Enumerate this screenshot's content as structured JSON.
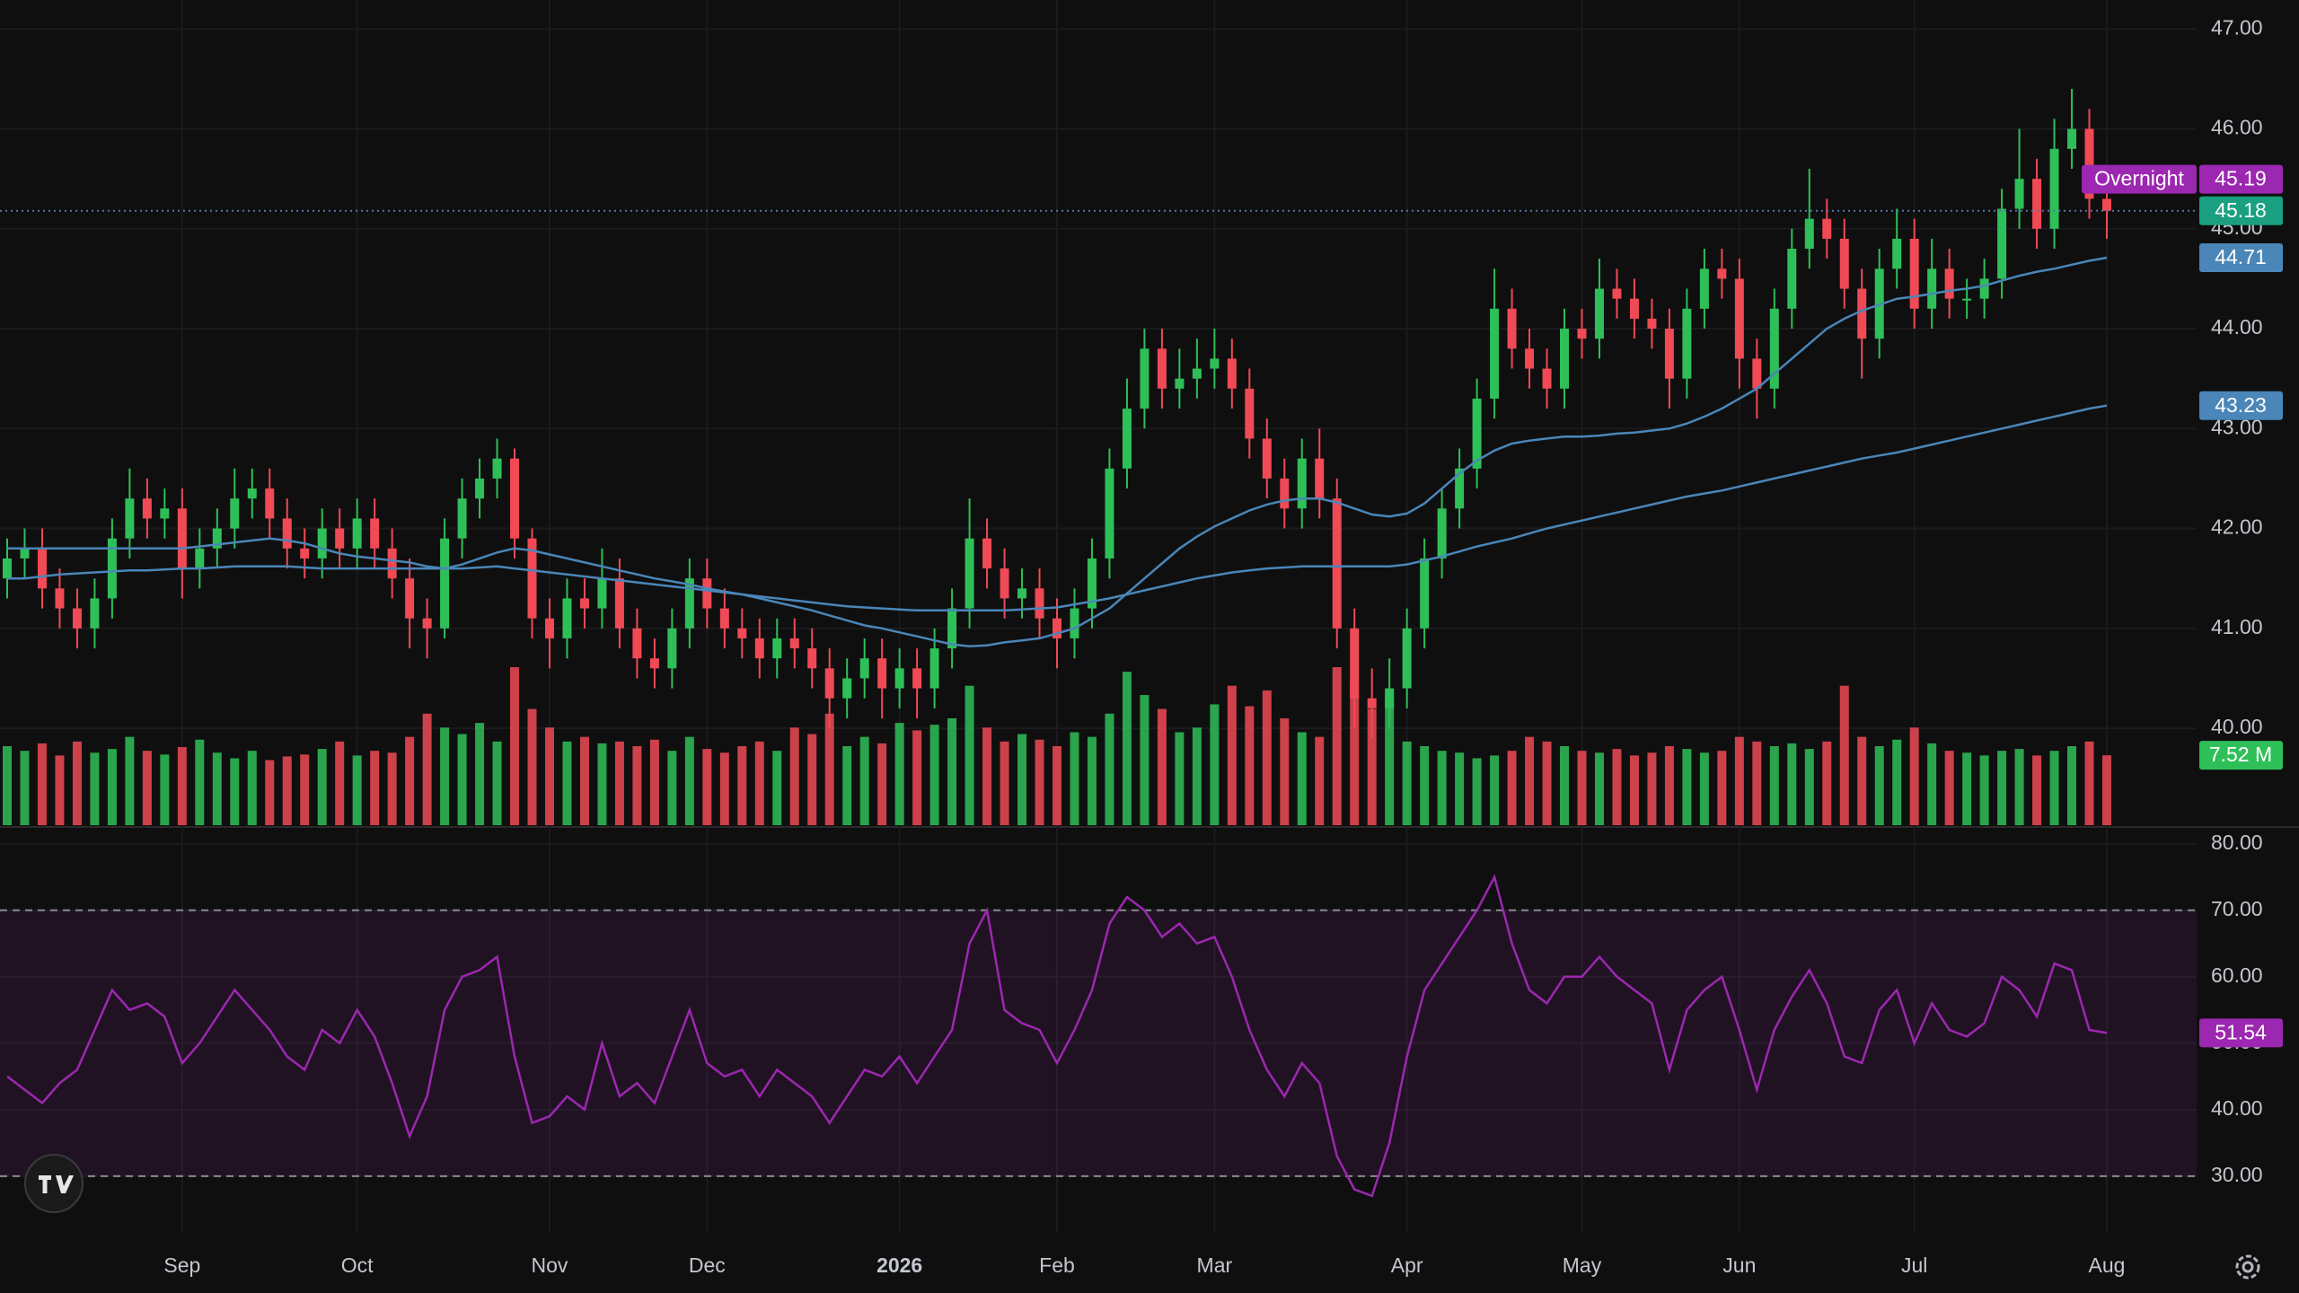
{
  "chart_data": {
    "type": "candlestick",
    "categories": [
      null,
      null,
      null,
      null,
      null,
      null,
      null,
      null,
      null,
      null,
      "Sep",
      null,
      null,
      null,
      null,
      null,
      null,
      null,
      null,
      null,
      "Oct",
      null,
      null,
      null,
      null,
      null,
      null,
      null,
      null,
      null,
      null,
      "Nov",
      null,
      null,
      null,
      null,
      null,
      null,
      null,
      null,
      "Dec",
      null,
      null,
      null,
      null,
      null,
      null,
      null,
      null,
      null,
      null,
      "2026",
      null,
      null,
      null,
      null,
      null,
      null,
      null,
      null,
      "Feb",
      null,
      null,
      null,
      null,
      null,
      null,
      null,
      null,
      "Mar",
      null,
      null,
      null,
      null,
      null,
      null,
      null,
      null,
      null,
      null,
      "Apr",
      null,
      null,
      null,
      null,
      null,
      null,
      null,
      null,
      null,
      "May",
      null,
      null,
      null,
      null,
      null,
      null,
      null,
      null,
      "Jun",
      null,
      null,
      null,
      null,
      null,
      null,
      null,
      null,
      null,
      "Jul",
      null,
      null,
      null,
      null,
      null,
      null,
      null,
      null,
      null,
      null,
      "Aug"
    ],
    "ylim": [
      39.03,
      47.29
    ],
    "yticks": [
      {
        "value": 40,
        "label": "40.00"
      },
      {
        "value": 41,
        "label": "41.00"
      },
      {
        "value": 42,
        "label": "42.00"
      },
      {
        "value": 43,
        "label": "43.00"
      },
      {
        "value": 44,
        "label": "44.00"
      },
      {
        "value": 45,
        "label": "45.00"
      },
      {
        "value": 46,
        "label": "46.00"
      },
      {
        "value": 47,
        "label": "47.00"
      }
    ],
    "grid": true,
    "up_color": "#2fbf58",
    "down_color": "#ef4a55",
    "candles": {
      "open": [
        41.5,
        41.7,
        41.8,
        41.4,
        41.2,
        41.0,
        41.3,
        41.9,
        42.3,
        42.1,
        42.2,
        41.6,
        41.8,
        42.0,
        42.3,
        42.4,
        42.1,
        41.8,
        41.7,
        42.0,
        41.8,
        42.1,
        41.8,
        41.5,
        41.1,
        41.0,
        41.9,
        42.3,
        42.5,
        42.7,
        41.9,
        41.1,
        40.9,
        41.3,
        41.2,
        41.5,
        41.0,
        40.7,
        40.6,
        41.0,
        41.5,
        41.2,
        41.0,
        40.9,
        40.7,
        40.9,
        40.8,
        40.6,
        40.3,
        40.5,
        40.7,
        40.4,
        40.6,
        40.4,
        40.8,
        41.2,
        41.9,
        41.6,
        41.3,
        41.4,
        41.1,
        40.9,
        41.2,
        41.7,
        42.6,
        43.2,
        43.8,
        43.4,
        43.5,
        43.6,
        43.7,
        43.4,
        42.9,
        42.5,
        42.2,
        42.7,
        42.3,
        41.0,
        40.3,
        40.2,
        40.4,
        41.0,
        41.7,
        42.2,
        42.6,
        43.3,
        44.2,
        43.8,
        43.6,
        43.4,
        44.0,
        43.9,
        44.4,
        44.3,
        44.1,
        44.0,
        43.5,
        44.2,
        44.6,
        44.5,
        43.7,
        43.4,
        44.2,
        44.8,
        45.1,
        44.9,
        44.4,
        43.9,
        44.6,
        44.9,
        44.2,
        44.6,
        44.3,
        44.3,
        44.5,
        45.2,
        45.5,
        45.0,
        45.8,
        46.0,
        45.3
      ],
      "high": [
        41.9,
        42.0,
        42.0,
        41.6,
        41.4,
        41.5,
        42.1,
        42.6,
        42.5,
        42.4,
        42.4,
        42.0,
        42.2,
        42.6,
        42.6,
        42.6,
        42.3,
        42.0,
        42.2,
        42.2,
        42.3,
        42.3,
        42.0,
        41.7,
        41.3,
        42.1,
        42.5,
        42.7,
        42.9,
        42.8,
        42.0,
        41.3,
        41.5,
        41.5,
        41.8,
        41.7,
        41.2,
        40.9,
        41.2,
        41.7,
        41.7,
        41.4,
        41.2,
        41.1,
        41.1,
        41.1,
        41.0,
        40.8,
        40.7,
        40.9,
        40.9,
        40.8,
        40.8,
        41.0,
        41.4,
        42.3,
        42.1,
        41.8,
        41.6,
        41.6,
        41.3,
        41.4,
        41.9,
        42.8,
        43.5,
        44.0,
        44.0,
        43.8,
        43.9,
        44.0,
        43.9,
        43.6,
        43.1,
        42.7,
        42.9,
        43.0,
        42.5,
        41.2,
        40.6,
        40.7,
        41.2,
        41.9,
        42.4,
        42.8,
        43.5,
        44.6,
        44.4,
        44.0,
        43.8,
        44.2,
        44.2,
        44.7,
        44.6,
        44.5,
        44.3,
        44.2,
        44.4,
        44.8,
        44.8,
        44.7,
        43.9,
        44.4,
        45.0,
        45.6,
        45.3,
        45.1,
        44.6,
        44.8,
        45.2,
        45.1,
        44.9,
        44.8,
        44.5,
        44.7,
        45.4,
        46.0,
        45.7,
        46.1,
        46.4,
        46.2,
        45.5
      ],
      "low": [
        41.3,
        41.5,
        41.2,
        41.0,
        40.8,
        40.8,
        41.1,
        41.7,
        41.9,
        41.9,
        41.3,
        41.4,
        41.6,
        41.8,
        42.1,
        41.9,
        41.6,
        41.5,
        41.5,
        41.6,
        41.6,
        41.6,
        41.3,
        40.8,
        40.7,
        40.9,
        41.7,
        42.1,
        42.3,
        41.7,
        40.9,
        40.6,
        40.7,
        41.0,
        41.0,
        40.8,
        40.5,
        40.4,
        40.4,
        40.8,
        41.0,
        40.8,
        40.7,
        40.5,
        40.5,
        40.6,
        40.4,
        40.0,
        40.1,
        40.3,
        40.1,
        40.2,
        40.1,
        40.2,
        40.6,
        41.0,
        41.4,
        41.1,
        41.1,
        40.9,
        40.6,
        40.7,
        41.0,
        41.5,
        42.4,
        43.0,
        43.2,
        43.2,
        43.3,
        43.4,
        43.2,
        42.7,
        42.3,
        42.0,
        42.0,
        42.1,
        40.8,
        40.0,
        39.9,
        40.0,
        40.2,
        40.8,
        41.5,
        42.0,
        42.4,
        43.1,
        43.6,
        43.4,
        43.2,
        43.2,
        43.7,
        43.7,
        44.1,
        43.9,
        43.8,
        43.2,
        43.3,
        44.0,
        44.3,
        43.4,
        43.1,
        43.2,
        44.0,
        44.6,
        44.7,
        44.2,
        43.5,
        43.7,
        44.4,
        44.0,
        44.0,
        44.1,
        44.1,
        44.1,
        44.3,
        45.0,
        44.8,
        44.8,
        45.6,
        45.1,
        44.9
      ],
      "close": [
        41.7,
        41.8,
        41.4,
        41.2,
        41.0,
        41.3,
        41.9,
        42.3,
        42.1,
        42.2,
        41.6,
        41.8,
        42.0,
        42.3,
        42.4,
        42.1,
        41.8,
        41.7,
        42.0,
        41.8,
        42.1,
        41.8,
        41.5,
        41.1,
        41.0,
        41.9,
        42.3,
        42.5,
        42.7,
        41.9,
        41.1,
        40.9,
        41.3,
        41.2,
        41.5,
        41.0,
        40.7,
        40.6,
        41.0,
        41.5,
        41.2,
        41.0,
        40.9,
        40.7,
        40.9,
        40.8,
        40.6,
        40.3,
        40.5,
        40.7,
        40.4,
        40.6,
        40.4,
        40.8,
        41.2,
        41.9,
        41.6,
        41.3,
        41.4,
        41.1,
        40.9,
        41.2,
        41.7,
        42.6,
        43.2,
        43.8,
        43.4,
        43.5,
        43.6,
        43.7,
        43.4,
        42.9,
        42.5,
        42.2,
        42.7,
        42.3,
        41.0,
        40.3,
        40.2,
        40.4,
        41.0,
        41.7,
        42.2,
        42.6,
        43.3,
        44.2,
        43.8,
        43.6,
        43.4,
        44.0,
        43.9,
        44.4,
        44.3,
        44.1,
        44.0,
        43.5,
        44.2,
        44.6,
        44.5,
        43.7,
        43.4,
        44.2,
        44.8,
        45.1,
        44.9,
        44.4,
        43.9,
        44.6,
        44.9,
        44.2,
        44.6,
        44.3,
        44.3,
        44.5,
        45.2,
        45.5,
        45.0,
        45.8,
        46.0,
        45.3,
        45.18
      ]
    },
    "last_price_color": "#1aa080",
    "overnight": {
      "label": "Overnight",
      "value": 45.19,
      "color": "#9c27b0"
    },
    "moving_averages": [
      {
        "color": "#4a86b8",
        "values": [
          41.8,
          41.8,
          41.8,
          41.8,
          41.8,
          41.8,
          41.8,
          41.8,
          41.8,
          41.8,
          41.8,
          41.82,
          41.84,
          41.86,
          41.88,
          41.9,
          41.88,
          41.85,
          41.8,
          41.75,
          41.72,
          41.7,
          41.68,
          41.66,
          41.62,
          41.6,
          41.64,
          41.7,
          41.76,
          41.8,
          41.78,
          41.74,
          41.7,
          41.66,
          41.62,
          41.58,
          41.54,
          41.5,
          41.47,
          41.44,
          41.4,
          41.37,
          41.34,
          41.3,
          41.26,
          41.22,
          41.18,
          41.13,
          41.08,
          41.03,
          41.0,
          40.96,
          40.92,
          40.88,
          40.84,
          40.82,
          40.83,
          40.86,
          40.88,
          40.9,
          40.95,
          41.0,
          41.1,
          41.2,
          41.35,
          41.5,
          41.65,
          41.8,
          41.92,
          42.02,
          42.1,
          42.18,
          42.24,
          42.28,
          42.3,
          42.3,
          42.26,
          42.2,
          42.14,
          42.12,
          42.15,
          42.25,
          42.4,
          42.55,
          42.68,
          42.78,
          42.85,
          42.88,
          42.9,
          42.92,
          42.92,
          42.93,
          42.95,
          42.96,
          42.98,
          43.0,
          43.05,
          43.12,
          43.2,
          43.3,
          43.4,
          43.55,
          43.7,
          43.85,
          44.0,
          44.1,
          44.18,
          44.24,
          44.3,
          44.32,
          44.35,
          44.38,
          44.4,
          44.43,
          44.48,
          44.53,
          44.57,
          44.6,
          44.64,
          44.68,
          44.71
        ]
      },
      {
        "color": "#4a86b8",
        "values": [
          41.5,
          41.5,
          41.52,
          41.54,
          41.55,
          41.56,
          41.57,
          41.58,
          41.58,
          41.59,
          41.6,
          41.6,
          41.61,
          41.62,
          41.62,
          41.62,
          41.62,
          41.61,
          41.6,
          41.6,
          41.6,
          41.6,
          41.6,
          41.6,
          41.6,
          41.6,
          41.6,
          41.61,
          41.62,
          41.6,
          41.58,
          41.56,
          41.54,
          41.52,
          41.5,
          41.48,
          41.46,
          41.44,
          41.42,
          41.4,
          41.38,
          41.36,
          41.34,
          41.32,
          41.3,
          41.28,
          41.26,
          41.24,
          41.22,
          41.21,
          41.2,
          41.19,
          41.18,
          41.18,
          41.18,
          41.18,
          41.18,
          41.18,
          41.19,
          41.2,
          41.21,
          41.24,
          41.27,
          41.3,
          41.34,
          41.38,
          41.42,
          41.46,
          41.5,
          41.53,
          41.56,
          41.58,
          41.6,
          41.61,
          41.62,
          41.62,
          41.62,
          41.62,
          41.62,
          41.62,
          41.64,
          41.68,
          41.72,
          41.77,
          41.82,
          41.86,
          41.9,
          41.95,
          42.0,
          42.04,
          42.08,
          42.12,
          42.16,
          42.2,
          42.24,
          42.28,
          42.32,
          42.35,
          42.38,
          42.42,
          42.46,
          42.5,
          42.54,
          42.58,
          42.62,
          42.66,
          42.7,
          42.73,
          42.76,
          42.8,
          42.84,
          42.88,
          42.92,
          42.96,
          43.0,
          43.04,
          43.08,
          43.12,
          43.16,
          43.2,
          43.23
        ]
      }
    ],
    "volume": {
      "values": [
        8.5,
        8.0,
        8.8,
        7.5,
        9.0,
        7.8,
        8.2,
        9.5,
        8.0,
        7.6,
        8.4,
        9.2,
        7.8,
        7.2,
        8.0,
        7.0,
        7.4,
        7.6,
        8.2,
        9.0,
        7.5,
        8.0,
        7.8,
        9.5,
        12.0,
        10.5,
        9.8,
        11.0,
        9.0,
        17.0,
        12.5,
        10.5,
        9.0,
        9.5,
        8.8,
        9.0,
        8.5,
        9.2,
        8.0,
        9.5,
        8.2,
        7.8,
        8.5,
        9.0,
        8.0,
        10.5,
        9.8,
        12.0,
        8.5,
        9.5,
        8.8,
        11.0,
        10.2,
        10.8,
        11.5,
        15.0,
        10.5,
        9.0,
        9.8,
        9.2,
        8.5,
        10.0,
        9.5,
        12.0,
        16.5,
        14.0,
        12.5,
        10.0,
        10.5,
        13.0,
        15.0,
        12.8,
        14.5,
        11.5,
        10.0,
        9.5,
        17.0,
        15.5,
        12.5,
        14.0,
        9.0,
        8.5,
        8.0,
        7.8,
        7.2,
        7.5,
        8.0,
        9.5,
        9.0,
        8.5,
        8.0,
        7.8,
        8.2,
        7.5,
        7.8,
        8.5,
        8.2,
        7.8,
        8.0,
        9.5,
        9.0,
        8.5,
        8.8,
        8.2,
        9.0,
        15.0,
        9.5,
        8.5,
        9.2,
        10.5,
        8.8,
        8.0,
        7.8,
        7.5,
        8.0,
        8.2,
        7.5,
        8.0,
        8.5,
        9.0,
        7.52
      ],
      "value_labels": [
        null,
        null,
        null,
        null,
        null,
        null,
        null,
        null,
        null,
        null,
        null,
        null,
        null,
        null,
        null,
        null,
        null,
        null,
        null,
        null,
        null,
        null,
        null,
        null,
        null,
        null,
        null,
        null,
        null,
        null,
        null,
        null,
        null,
        null,
        null,
        null,
        null,
        null,
        null,
        null,
        null,
        null,
        null,
        null,
        null,
        null,
        null,
        null,
        null,
        null,
        null,
        null,
        null,
        null,
        null,
        null,
        null,
        null,
        null,
        null,
        null,
        null,
        null,
        null,
        null,
        null,
        null,
        null,
        null,
        null,
        null,
        null,
        null,
        null,
        null,
        null,
        null,
        null,
        null,
        null,
        null,
        null,
        null,
        null,
        null,
        null,
        null,
        null,
        null,
        null,
        null,
        null,
        null,
        null,
        null,
        null,
        null,
        null,
        null,
        null,
        null,
        null,
        null,
        null,
        null,
        null,
        null,
        null,
        null,
        null,
        null,
        null,
        null,
        null,
        null,
        null,
        null,
        null,
        null,
        null,
        "7.52 M"
      ]
    },
    "rsi": {
      "color": "#9c27b0",
      "ylim": [
        21.6,
        82.4
      ],
      "yticks": [
        {
          "value": 30,
          "label": "30.00"
        },
        {
          "value": 40,
          "label": "40.00"
        },
        {
          "value": 50,
          "label": "50.00"
        },
        {
          "value": 60,
          "label": "60.00"
        },
        {
          "value": 70,
          "label": "70.00"
        },
        {
          "value": 80,
          "label": "80.00"
        }
      ],
      "band": [
        30,
        70
      ],
      "values": [
        45,
        43,
        41,
        44,
        46,
        52,
        58,
        55,
        56,
        54,
        47,
        50,
        54,
        58,
        55,
        52,
        48,
        46,
        52,
        50,
        55,
        51,
        44,
        36,
        42,
        55,
        60,
        61,
        63,
        48,
        38,
        39,
        42,
        40,
        50,
        42,
        44,
        41,
        48,
        55,
        47,
        45,
        46,
        42,
        46,
        44,
        42,
        38,
        42,
        46,
        45,
        48,
        44,
        48,
        52,
        65,
        70,
        55,
        53,
        52,
        47,
        52,
        58,
        68,
        72,
        70,
        66,
        68,
        65,
        66,
        60,
        52,
        46,
        42,
        47,
        44,
        33,
        28,
        27,
        35,
        48,
        58,
        62,
        66,
        70,
        75,
        65,
        58,
        56,
        60,
        60,
        63,
        60,
        58,
        56,
        46,
        55,
        58,
        60,
        52,
        43,
        52,
        57,
        61,
        56,
        48,
        47,
        55,
        58,
        50,
        56,
        52,
        51,
        53,
        60,
        58,
        54,
        62,
        61,
        52,
        51.54
      ]
    }
  }
}
